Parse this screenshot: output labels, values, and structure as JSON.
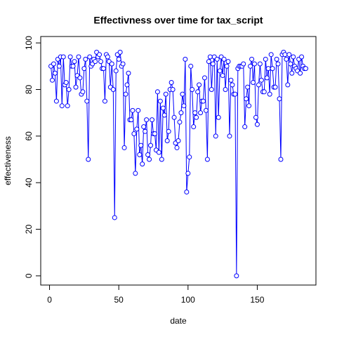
{
  "chart_data": {
    "type": "line",
    "title": "Effectivness over time for tax_script",
    "x_label": "date",
    "y_label": "effectiveness",
    "x": [
      1,
      2,
      3,
      4,
      5,
      6,
      7,
      8,
      9,
      10,
      11,
      12,
      13,
      14,
      15,
      16,
      17,
      18,
      19,
      20,
      21,
      22,
      23,
      24,
      25,
      26,
      27,
      28,
      29,
      30,
      31,
      32,
      33,
      34,
      35,
      36,
      37,
      38,
      39,
      40,
      41,
      42,
      43,
      44,
      45,
      46,
      47,
      48,
      49,
      50,
      51,
      52,
      53,
      54,
      55,
      56,
      57,
      58,
      59,
      60,
      61,
      62,
      63,
      64,
      65,
      66,
      67,
      68,
      69,
      70,
      71,
      72,
      73,
      74,
      75,
      76,
      77,
      78,
      79,
      80,
      81,
      82,
      83,
      84,
      85,
      86,
      87,
      88,
      89,
      90,
      91,
      92,
      93,
      94,
      95,
      96,
      97,
      98,
      99,
      100,
      101,
      102,
      103,
      104,
      105,
      106,
      107,
      108,
      109,
      110,
      111,
      112,
      113,
      114,
      115,
      116,
      117,
      118,
      119,
      120,
      121,
      122,
      123,
      124,
      125,
      126,
      127,
      128,
      129,
      130,
      131,
      132,
      133,
      134,
      135,
      136,
      137,
      138,
      139,
      140,
      141,
      142,
      143,
      144,
      145,
      146,
      147,
      148,
      149,
      150,
      151,
      152,
      153,
      154,
      155,
      156,
      157,
      158,
      159,
      160,
      161,
      162,
      163,
      164,
      165,
      166,
      167,
      168,
      169,
      170,
      171,
      172,
      173,
      174,
      175,
      176,
      177,
      178,
      179,
      180,
      181,
      182,
      183,
      184,
      185
    ],
    "series": [
      {
        "name": "effectiveness",
        "color": "#0000ff",
        "values": [
          90,
          84,
          91,
          87,
          75,
          93,
          90,
          94,
          73,
          94,
          82,
          83,
          73,
          80,
          94,
          90,
          90,
          92,
          81,
          86,
          94,
          85,
          78,
          79,
          89,
          93,
          75,
          50,
          94,
          90,
          91,
          93,
          92,
          96,
          94,
          95,
          92,
          89,
          89,
          75,
          95,
          94,
          92,
          81,
          91,
          80,
          25,
          88,
          95,
          93,
          96,
          90,
          91,
          55,
          78,
          82,
          87,
          67,
          67,
          71,
          61,
          44,
          63,
          71,
          52,
          56,
          48,
          64,
          62,
          67,
          52,
          50,
          56,
          67,
          61,
          61,
          54,
          79,
          53,
          75,
          50,
          72,
          69,
          78,
          58,
          62,
          80,
          83,
          80,
          68,
          57,
          55,
          58,
          66,
          70,
          78,
          73,
          93,
          36,
          44,
          51,
          90,
          80,
          64,
          70,
          68,
          79,
          82,
          70,
          75,
          75,
          85,
          71,
          50,
          92,
          94,
          80,
          91,
          94,
          60,
          93,
          68,
          88,
          94,
          86,
          93,
          80,
          90,
          92,
          60,
          84,
          82,
          78,
          78,
          0,
          89,
          90,
          90,
          90,
          91,
          64,
          76,
          81,
          73,
          90,
          93,
          83,
          91,
          68,
          65,
          82,
          91,
          84,
          79,
          79,
          93,
          85,
          89,
          78,
          95,
          89,
          81,
          81,
          93,
          91,
          76,
          50,
          95,
          96,
          95,
          93,
          82,
          95,
          91,
          87,
          94,
          90,
          89,
          88,
          93,
          87,
          94,
          90,
          89,
          89
        ]
      }
    ],
    "xlim": [
      -6.36,
      192.36
    ],
    "ylim": [
      -3.95,
      102.75
    ],
    "xticks": [
      0,
      50,
      100,
      150
    ],
    "yticks": [
      0,
      20,
      40,
      60,
      80,
      100
    ]
  }
}
